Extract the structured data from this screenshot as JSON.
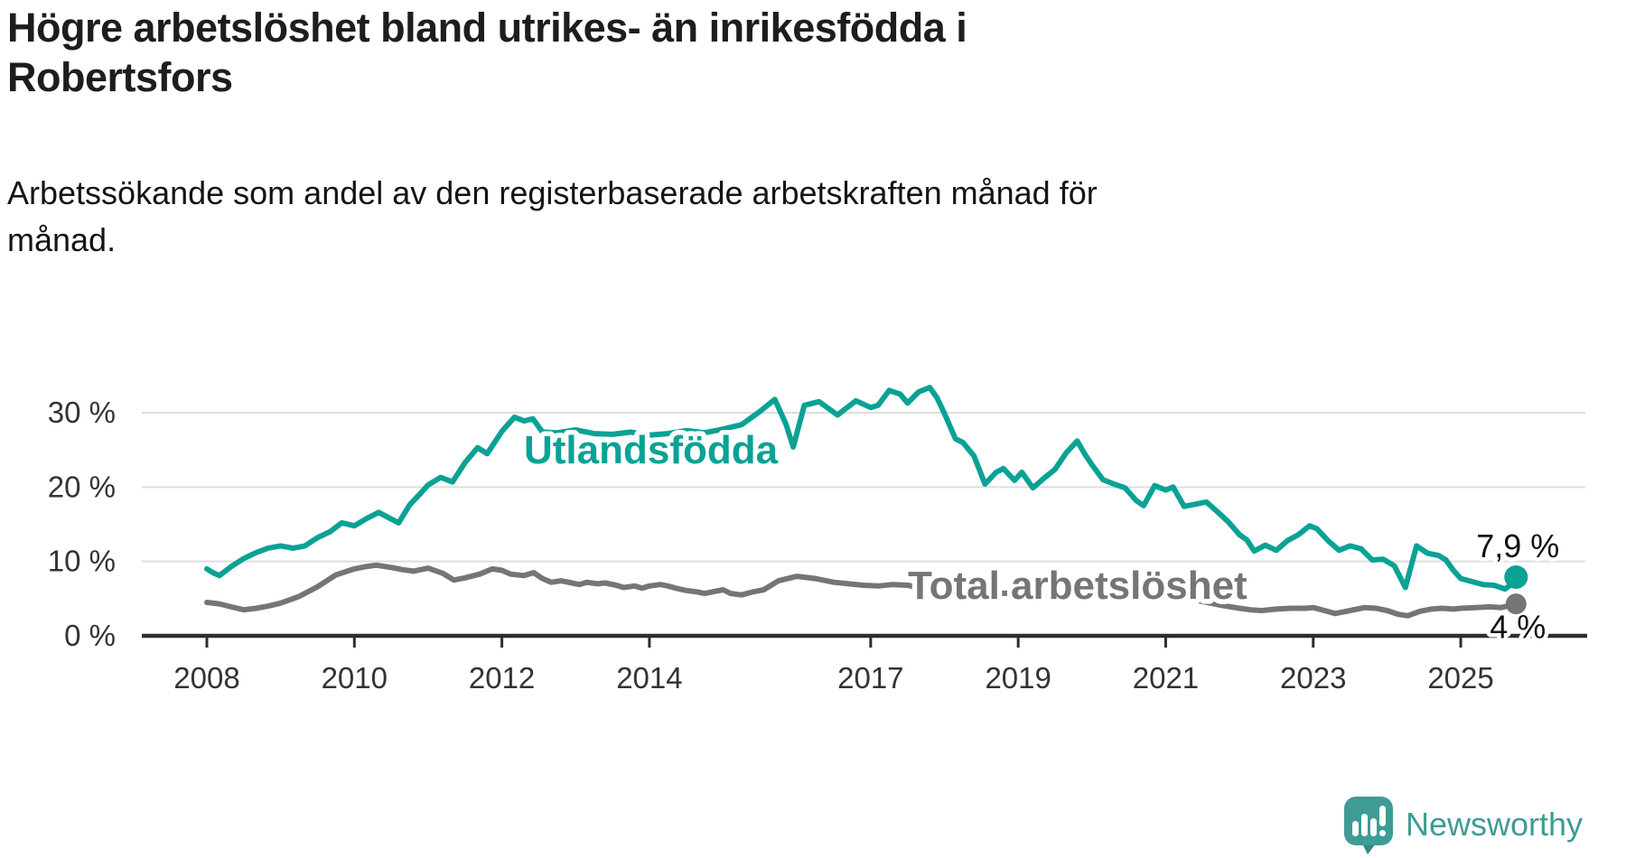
{
  "title": {
    "line1": "Högre arbetslöshet bland utrikes- än inrikesfödda i",
    "line2": "Robertsfors"
  },
  "subtitle": {
    "line1": "Arbetssökande som andel av den registerbaserade arbetskraften månad för",
    "line2": "månad."
  },
  "branding": {
    "name": "Newsworthy",
    "icon": "newsworthy-speech-bubble-bar-chart-icon",
    "color": "#3e9c94",
    "icon_tail_color": "#2f8a83"
  },
  "colors": {
    "foreign_born_line": "#0aa295",
    "total_line": "#757575",
    "axis": "#2e2e2e",
    "gridline": "#dddddd",
    "tick_text": "#333333",
    "annotation_text": "#111111",
    "background": "#ffffff"
  },
  "chart_data": {
    "type": "line",
    "title": "Högre arbetslöshet bland utrikes- än inrikesfödda i Robertsfors",
    "subtitle": "Arbetssökande som andel av den registerbaserade arbetskraften månad för månad.",
    "unit": "%",
    "grid": "horizontal",
    "legend_position": "inline-labels",
    "xlim": [
      2007.1,
      2026.7
    ],
    "ylim": [
      0,
      34
    ],
    "x_ticks": [
      {
        "label": "2008",
        "year": 2008
      },
      {
        "label": "2010",
        "year": 2010
      },
      {
        "label": "2012",
        "year": 2012
      },
      {
        "label": "2014",
        "year": 2014
      },
      {
        "label": "2017",
        "year": 2017
      },
      {
        "label": "2019",
        "year": 2019
      },
      {
        "label": "2021",
        "year": 2021
      },
      {
        "label": "2023",
        "year": 2023
      },
      {
        "label": "2025",
        "year": 2025
      }
    ],
    "y_ticks": [
      {
        "label": "30 %",
        "value": 30
      },
      {
        "label": "20 %",
        "value": 20
      },
      {
        "label": "10 %",
        "value": 10
      },
      {
        "label": "0 %",
        "value": 0
      }
    ],
    "series": [
      {
        "name": "Utlandsfödda",
        "color": "#0aa295",
        "end_label": "7,9 %",
        "end_value": 7.9,
        "points": [
          [
            2008.0,
            9.0
          ],
          [
            2008.08,
            8.5
          ],
          [
            2008.17,
            8.1
          ],
          [
            2008.33,
            9.3
          ],
          [
            2008.5,
            10.4
          ],
          [
            2008.67,
            11.2
          ],
          [
            2008.83,
            11.8
          ],
          [
            2009.0,
            12.1
          ],
          [
            2009.17,
            11.8
          ],
          [
            2009.33,
            12.1
          ],
          [
            2009.5,
            13.2
          ],
          [
            2009.67,
            14.0
          ],
          [
            2009.83,
            15.2
          ],
          [
            2010.0,
            14.8
          ],
          [
            2010.17,
            15.8
          ],
          [
            2010.33,
            16.6
          ],
          [
            2010.5,
            15.7
          ],
          [
            2010.6,
            15.2
          ],
          [
            2010.75,
            17.6
          ],
          [
            2010.9,
            19.2
          ],
          [
            2011.0,
            20.3
          ],
          [
            2011.17,
            21.3
          ],
          [
            2011.33,
            20.7
          ],
          [
            2011.5,
            23.3
          ],
          [
            2011.67,
            25.3
          ],
          [
            2011.8,
            24.5
          ],
          [
            2012.0,
            27.5
          ],
          [
            2012.17,
            29.4
          ],
          [
            2012.3,
            28.9
          ],
          [
            2012.42,
            29.2
          ],
          [
            2012.55,
            27.4
          ],
          [
            2012.75,
            27.3
          ],
          [
            2013.0,
            27.7
          ],
          [
            2013.25,
            27.2
          ],
          [
            2013.5,
            27.1
          ],
          [
            2013.75,
            27.4
          ],
          [
            2014.0,
            27.0
          ],
          [
            2014.25,
            27.2
          ],
          [
            2014.5,
            27.6
          ],
          [
            2014.75,
            27.3
          ],
          [
            2015.0,
            27.8
          ],
          [
            2015.25,
            28.4
          ],
          [
            2015.5,
            30.2
          ],
          [
            2015.7,
            31.8
          ],
          [
            2015.85,
            28.5
          ],
          [
            2015.95,
            25.4
          ],
          [
            2016.1,
            31.0
          ],
          [
            2016.3,
            31.5
          ],
          [
            2016.55,
            29.7
          ],
          [
            2016.8,
            31.6
          ],
          [
            2017.0,
            30.7
          ],
          [
            2017.1,
            31.0
          ],
          [
            2017.25,
            33.0
          ],
          [
            2017.4,
            32.5
          ],
          [
            2017.5,
            31.3
          ],
          [
            2017.65,
            32.8
          ],
          [
            2017.8,
            33.4
          ],
          [
            2017.9,
            32.0
          ],
          [
            2018.0,
            29.9
          ],
          [
            2018.15,
            26.5
          ],
          [
            2018.25,
            26.0
          ],
          [
            2018.4,
            24.2
          ],
          [
            2018.55,
            20.4
          ],
          [
            2018.7,
            22.0
          ],
          [
            2018.8,
            22.5
          ],
          [
            2018.95,
            20.9
          ],
          [
            2019.05,
            22.0
          ],
          [
            2019.2,
            19.9
          ],
          [
            2019.35,
            21.2
          ],
          [
            2019.5,
            22.4
          ],
          [
            2019.65,
            24.6
          ],
          [
            2019.8,
            26.2
          ],
          [
            2019.9,
            24.5
          ],
          [
            2020.0,
            23.0
          ],
          [
            2020.15,
            21.0
          ],
          [
            2020.3,
            20.4
          ],
          [
            2020.45,
            19.9
          ],
          [
            2020.6,
            18.2
          ],
          [
            2020.7,
            17.5
          ],
          [
            2020.85,
            20.2
          ],
          [
            2021.0,
            19.6
          ],
          [
            2021.1,
            20.0
          ],
          [
            2021.25,
            17.4
          ],
          [
            2021.4,
            17.7
          ],
          [
            2021.55,
            18.0
          ],
          [
            2021.7,
            16.7
          ],
          [
            2021.85,
            15.3
          ],
          [
            2022.0,
            13.6
          ],
          [
            2022.1,
            12.9
          ],
          [
            2022.2,
            11.4
          ],
          [
            2022.35,
            12.2
          ],
          [
            2022.5,
            11.5
          ],
          [
            2022.65,
            12.8
          ],
          [
            2022.8,
            13.6
          ],
          [
            2022.95,
            14.8
          ],
          [
            2023.05,
            14.4
          ],
          [
            2023.2,
            12.8
          ],
          [
            2023.35,
            11.5
          ],
          [
            2023.5,
            12.1
          ],
          [
            2023.65,
            11.7
          ],
          [
            2023.8,
            10.2
          ],
          [
            2023.95,
            10.3
          ],
          [
            2024.1,
            9.4
          ],
          [
            2024.25,
            6.5
          ],
          [
            2024.4,
            12.1
          ],
          [
            2024.55,
            11.1
          ],
          [
            2024.7,
            10.8
          ],
          [
            2024.8,
            10.2
          ],
          [
            2024.9,
            8.8
          ],
          [
            2025.0,
            7.7
          ],
          [
            2025.15,
            7.3
          ],
          [
            2025.3,
            6.9
          ],
          [
            2025.45,
            6.8
          ],
          [
            2025.6,
            6.3
          ],
          [
            2025.7,
            7.0
          ],
          [
            2025.75,
            7.9
          ]
        ]
      },
      {
        "name": "Total arbetslöshet",
        "color": "#757575",
        "end_label": "4 %",
        "end_value": 4.3,
        "points": [
          [
            2008.0,
            4.5
          ],
          [
            2008.17,
            4.3
          ],
          [
            2008.33,
            3.9
          ],
          [
            2008.5,
            3.5
          ],
          [
            2008.67,
            3.7
          ],
          [
            2008.83,
            4.0
          ],
          [
            2009.0,
            4.4
          ],
          [
            2009.25,
            5.3
          ],
          [
            2009.5,
            6.6
          ],
          [
            2009.75,
            8.2
          ],
          [
            2010.0,
            9.0
          ],
          [
            2010.15,
            9.3
          ],
          [
            2010.3,
            9.5
          ],
          [
            2010.5,
            9.2
          ],
          [
            2010.65,
            8.9
          ],
          [
            2010.8,
            8.7
          ],
          [
            2011.0,
            9.1
          ],
          [
            2011.2,
            8.4
          ],
          [
            2011.35,
            7.5
          ],
          [
            2011.5,
            7.8
          ],
          [
            2011.7,
            8.3
          ],
          [
            2011.87,
            9.0
          ],
          [
            2012.0,
            8.8
          ],
          [
            2012.12,
            8.3
          ],
          [
            2012.3,
            8.1
          ],
          [
            2012.43,
            8.5
          ],
          [
            2012.55,
            7.7
          ],
          [
            2012.67,
            7.2
          ],
          [
            2012.8,
            7.4
          ],
          [
            2012.95,
            7.1
          ],
          [
            2013.05,
            6.9
          ],
          [
            2013.15,
            7.2
          ],
          [
            2013.3,
            7.0
          ],
          [
            2013.4,
            7.1
          ],
          [
            2013.55,
            6.8
          ],
          [
            2013.65,
            6.5
          ],
          [
            2013.8,
            6.7
          ],
          [
            2013.9,
            6.4
          ],
          [
            2014.0,
            6.7
          ],
          [
            2014.15,
            6.9
          ],
          [
            2014.25,
            6.7
          ],
          [
            2014.4,
            6.3
          ],
          [
            2014.5,
            6.1
          ],
          [
            2014.65,
            5.9
          ],
          [
            2014.75,
            5.7
          ],
          [
            2014.9,
            6.0
          ],
          [
            2015.0,
            6.2
          ],
          [
            2015.1,
            5.7
          ],
          [
            2015.25,
            5.5
          ],
          [
            2015.4,
            5.9
          ],
          [
            2015.55,
            6.2
          ],
          [
            2015.75,
            7.4
          ],
          [
            2016.0,
            8.0
          ],
          [
            2016.25,
            7.7
          ],
          [
            2016.5,
            7.2
          ],
          [
            2016.7,
            7.0
          ],
          [
            2016.9,
            6.8
          ],
          [
            2017.1,
            6.7
          ],
          [
            2017.3,
            6.9
          ],
          [
            2017.5,
            6.8
          ],
          [
            2017.75,
            6.3
          ],
          [
            2018.0,
            6.0
          ],
          [
            2018.25,
            5.8
          ],
          [
            2018.5,
            5.6
          ],
          [
            2018.75,
            5.7
          ],
          [
            2019.0,
            5.8
          ],
          [
            2019.25,
            5.5
          ],
          [
            2019.5,
            5.4
          ],
          [
            2019.75,
            5.6
          ],
          [
            2020.0,
            6.2
          ],
          [
            2020.25,
            7.0
          ],
          [
            2020.4,
            7.2
          ],
          [
            2020.6,
            7.0
          ],
          [
            2020.8,
            6.5
          ],
          [
            2021.0,
            5.8
          ],
          [
            2021.25,
            5.2
          ],
          [
            2021.5,
            4.6
          ],
          [
            2021.75,
            4.1
          ],
          [
            2022.0,
            3.7
          ],
          [
            2022.15,
            3.5
          ],
          [
            2022.3,
            3.4
          ],
          [
            2022.5,
            3.6
          ],
          [
            2022.7,
            3.7
          ],
          [
            2022.9,
            3.7
          ],
          [
            2023.0,
            3.8
          ],
          [
            2023.15,
            3.4
          ],
          [
            2023.3,
            3.0
          ],
          [
            2023.5,
            3.4
          ],
          [
            2023.7,
            3.8
          ],
          [
            2023.85,
            3.7
          ],
          [
            2024.0,
            3.4
          ],
          [
            2024.15,
            2.9
          ],
          [
            2024.28,
            2.7
          ],
          [
            2024.45,
            3.3
          ],
          [
            2024.6,
            3.6
          ],
          [
            2024.75,
            3.7
          ],
          [
            2024.9,
            3.6
          ],
          [
            2025.0,
            3.7
          ],
          [
            2025.2,
            3.8
          ],
          [
            2025.4,
            3.9
          ],
          [
            2025.55,
            3.8
          ],
          [
            2025.75,
            4.3
          ]
        ]
      }
    ]
  }
}
